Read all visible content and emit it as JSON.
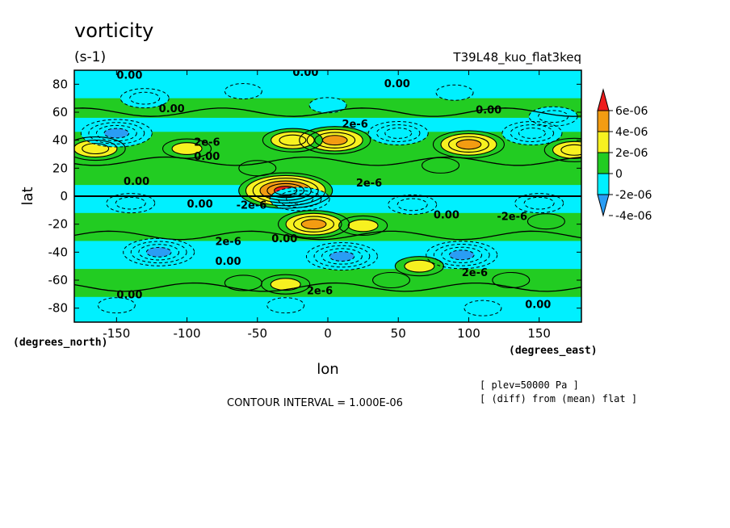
{
  "chart_data": {
    "type": "heatmap",
    "title": "vorticity",
    "units": "(s-1)",
    "run_label": "T39L48_kuo_flat3keq",
    "xlabel": "lon",
    "ylabel": "lat",
    "x_units": "(degrees_east)",
    "y_units": "(degrees_north)",
    "xlim": [
      -180,
      180
    ],
    "ylim": [
      -90,
      90
    ],
    "x_ticks": [
      -150,
      -100,
      -50,
      0,
      50,
      100,
      150
    ],
    "y_ticks": [
      -80,
      -60,
      -40,
      -20,
      0,
      20,
      40,
      60,
      80
    ],
    "x_tick_labels": [
      "-150",
      "-100",
      "-50",
      "0",
      "50",
      "100",
      "150"
    ],
    "y_tick_labels": [
      "-80",
      "-60",
      "-40",
      "-20",
      "0",
      "20",
      "40",
      "60",
      "80"
    ],
    "colorbar": {
      "labels": [
        "6e-06",
        "4e-06",
        "2e-06",
        "0",
        "-2e-06",
        "-4e-06"
      ],
      "colors": [
        "#ee1c1c",
        "#f39c12",
        "#f7f120",
        "#22cc22",
        "#00f0ff",
        "#2a9df4"
      ]
    },
    "contour_interval": "CONTOUR INTERVAL = 1.000E-06",
    "notes": [
      "[ plev=50000 Pa ]",
      "[ (diff) from (mean) flat ]"
    ],
    "contour_labels": [
      "0.00",
      "2e-6",
      "-2e-6"
    ],
    "features": [
      {
        "lon": 5,
        "lat": 40,
        "level": 4
      },
      {
        "lon": -25,
        "lat": 40,
        "level": 3
      },
      {
        "lon": 100,
        "lat": 37,
        "level": 4
      },
      {
        "lon": 175,
        "lat": 33,
        "level": 3
      },
      {
        "lon": -165,
        "lat": 34,
        "level": 3
      },
      {
        "lon": -100,
        "lat": 34,
        "level": 2
      },
      {
        "lon": -30,
        "lat": 4,
        "level": 6
      },
      {
        "lon": -10,
        "lat": -20,
        "level": 4
      },
      {
        "lon": 25,
        "lat": -21,
        "level": 2
      },
      {
        "lon": -150,
        "lat": 45,
        "level": -4
      },
      {
        "lon": 50,
        "lat": 45,
        "level": -3
      },
      {
        "lon": 145,
        "lat": 45,
        "level": -3
      },
      {
        "lon": -130,
        "lat": 70,
        "level": -2
      },
      {
        "lon": 160,
        "lat": 57,
        "level": -2
      },
      {
        "lon": -120,
        "lat": -40,
        "level": -4
      },
      {
        "lon": 10,
        "lat": -43,
        "level": -4
      },
      {
        "lon": 95,
        "lat": -42,
        "level": -4
      },
      {
        "lon": -20,
        "lat": -2,
        "level": -3
      },
      {
        "lon": 60,
        "lat": -6,
        "level": -2
      },
      {
        "lon": 150,
        "lat": -5,
        "level": -2
      },
      {
        "lon": -140,
        "lat": -5,
        "level": -2
      },
      {
        "lon": -60,
        "lat": 75,
        "level": -1
      },
      {
        "lon": 0,
        "lat": 65,
        "level": -1
      },
      {
        "lon": 90,
        "lat": 74,
        "level": -1
      },
      {
        "lon": -150,
        "lat": -78,
        "level": -1
      },
      {
        "lon": -30,
        "lat": -78,
        "level": -1
      },
      {
        "lon": 110,
        "lat": -80,
        "level": -1
      },
      {
        "lon": -50,
        "lat": 20,
        "level": 1
      },
      {
        "lon": 80,
        "lat": 22,
        "level": 1
      },
      {
        "lon": -60,
        "lat": -62,
        "level": 1
      },
      {
        "lon": 45,
        "lat": -60,
        "level": 1
      },
      {
        "lon": 130,
        "lat": -60,
        "level": 1
      },
      {
        "lon": -30,
        "lat": -63,
        "level": 2
      },
      {
        "lon": 65,
        "lat": -50,
        "level": 2
      },
      {
        "lon": 155,
        "lat": -18,
        "level": 1
      }
    ]
  }
}
